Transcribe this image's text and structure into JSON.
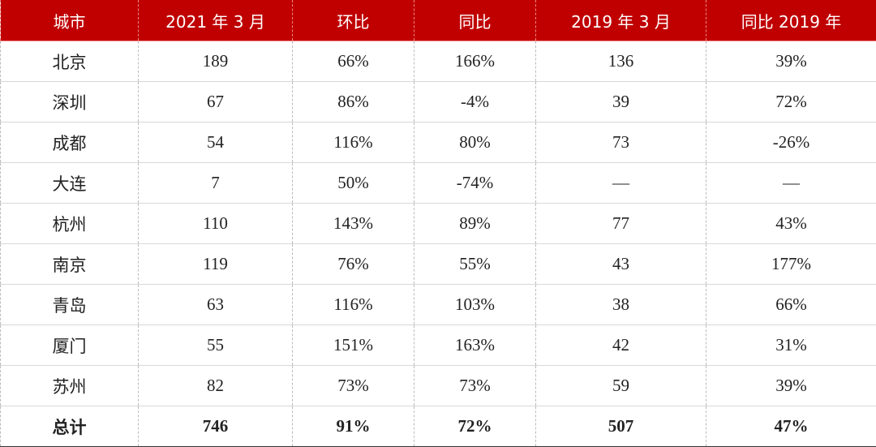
{
  "table": {
    "header": [
      "城市",
      "2021 年 3 月",
      "环比",
      "同比",
      "2019 年 3 月",
      "同比 2019 年"
    ],
    "rows": [
      [
        "北京",
        "189",
        "66%",
        "166%",
        "136",
        "39%"
      ],
      [
        "深圳",
        "67",
        "86%",
        "-4%",
        "39",
        "72%"
      ],
      [
        "成都",
        "54",
        "116%",
        "80%",
        "73",
        "-26%"
      ],
      [
        "大连",
        "7",
        "50%",
        "-74%",
        "—",
        "—"
      ],
      [
        "杭州",
        "110",
        "143%",
        "89%",
        "77",
        "43%"
      ],
      [
        "南京",
        "119",
        "76%",
        "55%",
        "43",
        "177%"
      ],
      [
        "青岛",
        "63",
        "116%",
        "103%",
        "38",
        "66%"
      ],
      [
        "厦门",
        "55",
        "151%",
        "163%",
        "42",
        "31%"
      ],
      [
        "苏州",
        "82",
        "73%",
        "73%",
        "59",
        "39%"
      ]
    ],
    "total": [
      "总计",
      "746",
      "91%",
      "72%",
      "507",
      "47%"
    ]
  }
}
